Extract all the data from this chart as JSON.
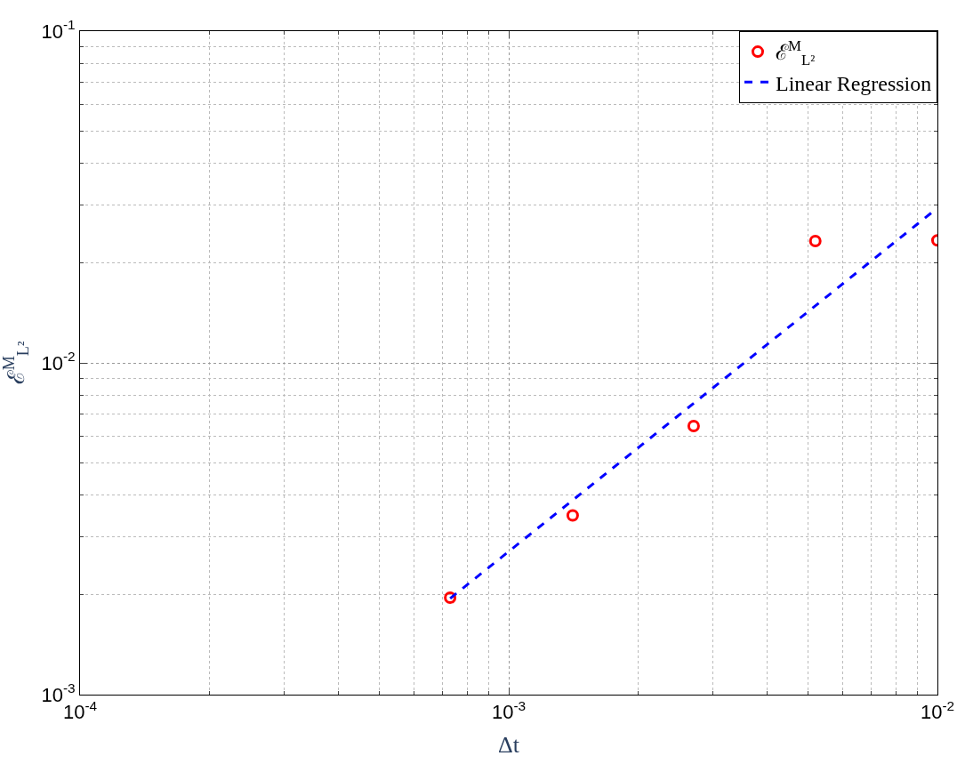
{
  "chart_data": {
    "type": "scatter",
    "xlabel": "Δt",
    "ylabel": "ℰ$^{M}$$_{L²}$",
    "log": "xy",
    "grid": true,
    "legend": "top right",
    "xlim": [
      0.0001,
      0.01
    ],
    "xticks": [
      {
        "value": 0.0001,
        "label": "10$^{-4}$"
      },
      {
        "value": 0.001,
        "label": "10$^{-3}$"
      },
      {
        "value": 0.01,
        "label": "10$^{-2}$"
      }
    ],
    "ylim": [
      0.001,
      0.1
    ],
    "yticks": [
      {
        "value": 0.001,
        "label": "10$^{-3}$"
      },
      {
        "value": 0.01,
        "label": "10$^{-2}$"
      },
      {
        "value": 0.1,
        "label": "10$^{-1}$"
      }
    ],
    "series": [
      {
        "name": "ℰ$^{M}$$_{L²}$",
        "marker": "circle",
        "color": "#ff0000",
        "x": [
          0.00073,
          0.00141,
          0.0027,
          0.00519,
          0.01
        ],
        "values": [
          0.00196,
          0.00347,
          0.00645,
          0.0233,
          0.0234
        ]
      },
      {
        "name": "Linear Regression",
        "type": "line",
        "marker": "none",
        "line_style": "dashed",
        "color": "#0000ff",
        "x": [
          0.00073,
          0.01
        ],
        "values": [
          0.00195,
          0.0293
        ]
      }
    ]
  }
}
